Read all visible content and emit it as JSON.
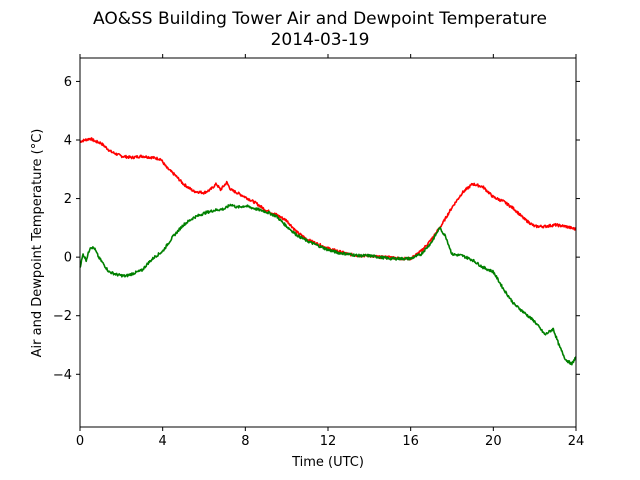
{
  "chart_data": {
    "type": "line",
    "title": "AO&SS Building Tower Air and Dewpoint Temperature",
    "subtitle": "2014-03-19",
    "xlabel": "Time (UTC)",
    "ylabel": "Air and Dewpoint Temperature (°C)",
    "xlim": [
      0,
      24
    ],
    "ylim": [
      -5.8,
      6.8
    ],
    "xticks": [
      0,
      4,
      8,
      12,
      16,
      20,
      24
    ],
    "yticks": [
      -4,
      -2,
      0,
      2,
      4,
      6
    ],
    "xtick_labels": [
      "0",
      "4",
      "8",
      "12",
      "16",
      "20",
      "24"
    ],
    "ytick_labels": [
      "−4",
      "−2",
      "0",
      "2",
      "4",
      "6"
    ],
    "grid": false,
    "series": [
      {
        "color": "#ff0000",
        "x": [
          0,
          0.25,
          0.5,
          0.75,
          1.0,
          1.5,
          2.0,
          2.5,
          3.0,
          3.5,
          3.9,
          4.2,
          4.6,
          5.0,
          5.5,
          6.0,
          6.3,
          6.6,
          6.8,
          7.1,
          7.3,
          7.6,
          8.0,
          8.5,
          9.0,
          9.5,
          10.0,
          10.5,
          11.0,
          11.5,
          12.0,
          12.5,
          13.0,
          13.5,
          14.0,
          14.5,
          15.0,
          15.5,
          16.0,
          16.5,
          17.0,
          17.5,
          18.0,
          18.5,
          19.0,
          19.5,
          20.0,
          20.5,
          21.0,
          21.5,
          22.0,
          22.5,
          23.0,
          23.5,
          24.0
        ],
        "y": [
          3.95,
          4.0,
          4.05,
          3.95,
          3.9,
          3.6,
          3.45,
          3.4,
          3.45,
          3.4,
          3.35,
          3.05,
          2.8,
          2.5,
          2.25,
          2.2,
          2.3,
          2.5,
          2.3,
          2.55,
          2.3,
          2.2,
          2.05,
          1.85,
          1.6,
          1.45,
          1.25,
          0.85,
          0.6,
          0.45,
          0.3,
          0.2,
          0.1,
          0.05,
          0.05,
          0.0,
          0.0,
          -0.05,
          -0.05,
          0.2,
          0.6,
          1.1,
          1.7,
          2.2,
          2.5,
          2.4,
          2.05,
          1.9,
          1.65,
          1.3,
          1.05,
          1.05,
          1.1,
          1.05,
          0.95
        ]
      },
      {
        "color": "#008000",
        "x": [
          0,
          0.15,
          0.3,
          0.5,
          0.7,
          0.9,
          1.1,
          1.4,
          1.8,
          2.2,
          2.6,
          3.0,
          3.3,
          3.6,
          4.0,
          4.5,
          5.0,
          5.5,
          6.0,
          6.5,
          7.0,
          7.3,
          7.6,
          8.0,
          8.5,
          9.0,
          9.5,
          10.0,
          10.5,
          11.0,
          11.5,
          12.0,
          12.5,
          13.0,
          13.5,
          14.0,
          14.5,
          15.0,
          15.5,
          16.0,
          16.5,
          17.0,
          17.4,
          17.7,
          18.0,
          18.5,
          19.0,
          19.5,
          20.0,
          20.5,
          21.0,
          21.5,
          22.0,
          22.5,
          22.9,
          23.2,
          23.5,
          23.8,
          24.0
        ],
        "y": [
          -0.35,
          0.1,
          -0.1,
          0.35,
          0.3,
          0.0,
          -0.2,
          -0.5,
          -0.6,
          -0.65,
          -0.55,
          -0.45,
          -0.2,
          0.0,
          0.2,
          0.7,
          1.1,
          1.35,
          1.5,
          1.6,
          1.65,
          1.8,
          1.7,
          1.75,
          1.65,
          1.55,
          1.4,
          1.05,
          0.75,
          0.55,
          0.4,
          0.25,
          0.15,
          0.1,
          0.05,
          0.05,
          0.0,
          -0.05,
          -0.05,
          -0.05,
          0.1,
          0.5,
          1.0,
          0.7,
          0.1,
          0.05,
          -0.1,
          -0.35,
          -0.5,
          -1.1,
          -1.6,
          -1.9,
          -2.2,
          -2.65,
          -2.45,
          -3.05,
          -3.5,
          -3.65,
          -3.4
        ]
      }
    ]
  }
}
